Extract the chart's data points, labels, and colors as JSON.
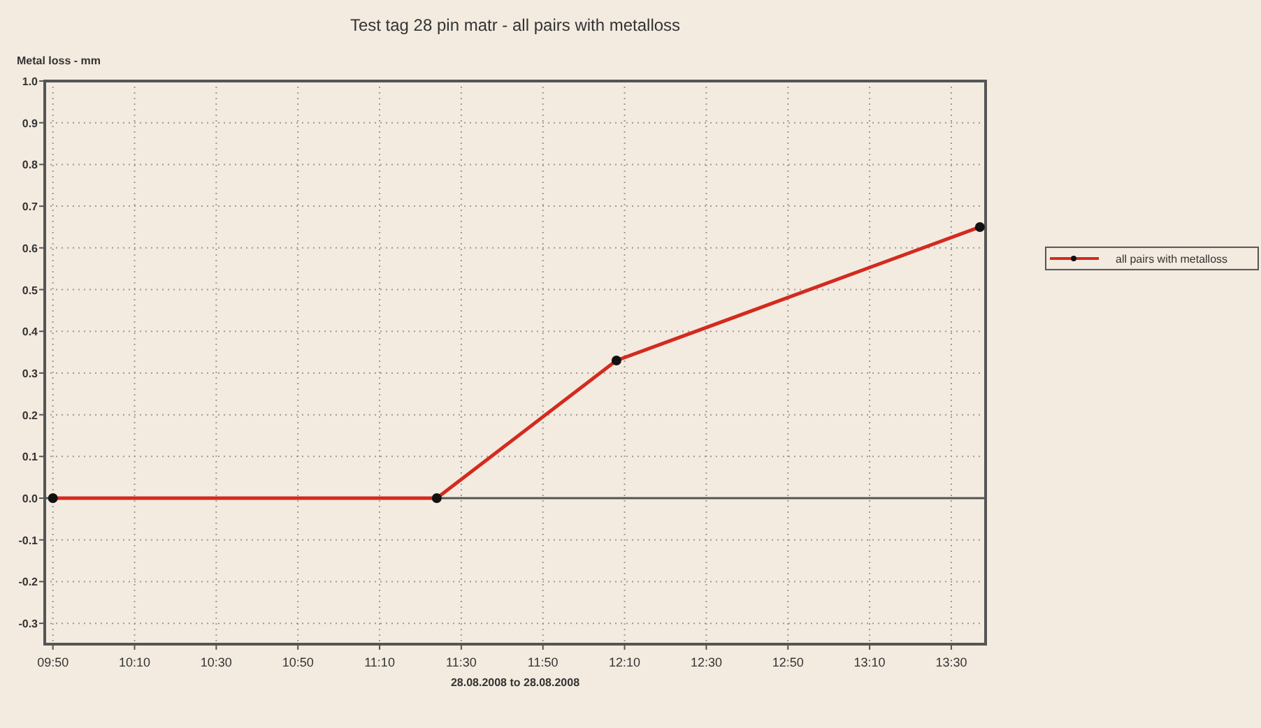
{
  "chart_data": {
    "type": "line",
    "title": "Test tag 28 pin matr - all pairs with metalloss",
    "xlabel": "28.08.2008 to 28.08.2008",
    "ylabel": "Metal loss - mm",
    "series": [
      {
        "name": "all pairs with metalloss",
        "color": "#d42a1e",
        "x": [
          9.8333,
          11.4,
          12.1333,
          13.6167
        ],
        "values": [
          0,
          0,
          0.33,
          0.65
        ]
      }
    ],
    "xlim": [
      9.8,
      13.64
    ],
    "xticks": [
      {
        "value": 9.8333,
        "label": "09:50"
      },
      {
        "value": 10.1667,
        "label": "10:10"
      },
      {
        "value": 10.5,
        "label": "10:30"
      },
      {
        "value": 10.8333,
        "label": "10:50"
      },
      {
        "value": 11.1667,
        "label": "11:10"
      },
      {
        "value": 11.5,
        "label": "11:30"
      },
      {
        "value": 11.8333,
        "label": "11:50"
      },
      {
        "value": 12.1667,
        "label": "12:10"
      },
      {
        "value": 12.5,
        "label": "12:30"
      },
      {
        "value": 12.8333,
        "label": "12:50"
      },
      {
        "value": 13.1667,
        "label": "13:10"
      },
      {
        "value": 13.5,
        "label": "13:30"
      }
    ],
    "ylim": [
      -0.35,
      1.0
    ],
    "yticks": [
      {
        "value": 1,
        "label": "1.0"
      },
      {
        "value": 0.9,
        "label": "0.9"
      },
      {
        "value": 0.8,
        "label": "0.8"
      },
      {
        "value": 0.7,
        "label": "0.7"
      },
      {
        "value": 0.6,
        "label": "0.6"
      },
      {
        "value": 0.5,
        "label": "0.5"
      },
      {
        "value": 0.4,
        "label": "0.4"
      },
      {
        "value": 0.3,
        "label": "0.3"
      },
      {
        "value": 0.2,
        "label": "0.2"
      },
      {
        "value": 0.1,
        "label": "0.1"
      },
      {
        "value": 0,
        "label": "0.0"
      },
      {
        "value": -0.1,
        "label": "-0.1"
      },
      {
        "value": -0.2,
        "label": "-0.2"
      },
      {
        "value": -0.3,
        "label": "-0.3"
      }
    ],
    "ref_lines": [
      {
        "axis": "y",
        "value": 0
      }
    ],
    "grid": true,
    "legend": "right",
    "marker": "circle",
    "line_style": "solid"
  }
}
